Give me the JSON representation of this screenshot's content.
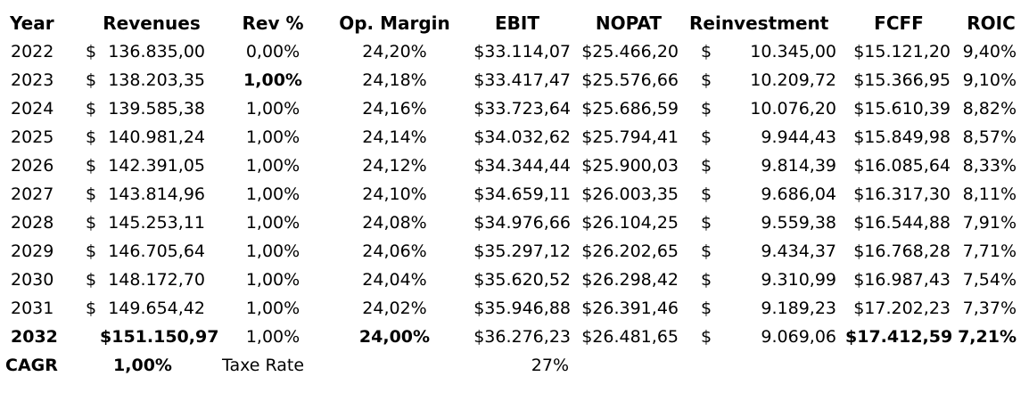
{
  "headers": [
    "Year",
    "Revenues",
    "Rev %",
    "Op. Margin",
    "EBIT",
    "NOPAT",
    "Reinvestment",
    "FCFF",
    "ROIC"
  ],
  "rows": [
    {
      "year": "2022",
      "rev_sym": "$",
      "rev": "136.835,00",
      "revpct": "0,00%",
      "opm": "24,20%",
      "ebit": "$33.114,07",
      "nopat": "$25.466,20",
      "reinv_sym": "$",
      "reinv": "10.345,00",
      "fcff": "$15.121,20",
      "roic": "9,40%"
    },
    {
      "year": "2023",
      "rev_sym": "$",
      "rev": "138.203,35",
      "revpct": "1,00%",
      "opm": "24,18%",
      "ebit": "$33.417,47",
      "nopat": "$25.576,66",
      "reinv_sym": "$",
      "reinv": "10.209,72",
      "fcff": "$15.366,95",
      "roic": "9,10%"
    },
    {
      "year": "2024",
      "rev_sym": "$",
      "rev": "139.585,38",
      "revpct": "1,00%",
      "opm": "24,16%",
      "ebit": "$33.723,64",
      "nopat": "$25.686,59",
      "reinv_sym": "$",
      "reinv": "10.076,20",
      "fcff": "$15.610,39",
      "roic": "8,82%"
    },
    {
      "year": "2025",
      "rev_sym": "$",
      "rev": "140.981,24",
      "revpct": "1,00%",
      "opm": "24,14%",
      "ebit": "$34.032,62",
      "nopat": "$25.794,41",
      "reinv_sym": "$",
      "reinv": "9.944,43",
      "fcff": "$15.849,98",
      "roic": "8,57%"
    },
    {
      "year": "2026",
      "rev_sym": "$",
      "rev": "142.391,05",
      "revpct": "1,00%",
      "opm": "24,12%",
      "ebit": "$34.344,44",
      "nopat": "$25.900,03",
      "reinv_sym": "$",
      "reinv": "9.814,39",
      "fcff": "$16.085,64",
      "roic": "8,33%"
    },
    {
      "year": "2027",
      "rev_sym": "$",
      "rev": "143.814,96",
      "revpct": "1,00%",
      "opm": "24,10%",
      "ebit": "$34.659,11",
      "nopat": "$26.003,35",
      "reinv_sym": "$",
      "reinv": "9.686,04",
      "fcff": "$16.317,30",
      "roic": "8,11%"
    },
    {
      "year": "2028",
      "rev_sym": "$",
      "rev": "145.253,11",
      "revpct": "1,00%",
      "opm": "24,08%",
      "ebit": "$34.976,66",
      "nopat": "$26.104,25",
      "reinv_sym": "$",
      "reinv": "9.559,38",
      "fcff": "$16.544,88",
      "roic": "7,91%"
    },
    {
      "year": "2029",
      "rev_sym": "$",
      "rev": "146.705,64",
      "revpct": "1,00%",
      "opm": "24,06%",
      "ebit": "$35.297,12",
      "nopat": "$26.202,65",
      "reinv_sym": "$",
      "reinv": "9.434,37",
      "fcff": "$16.768,28",
      "roic": "7,71%"
    },
    {
      "year": "2030",
      "rev_sym": "$",
      "rev": "148.172,70",
      "revpct": "1,00%",
      "opm": "24,04%",
      "ebit": "$35.620,52",
      "nopat": "$26.298,42",
      "reinv_sym": "$",
      "reinv": "9.310,99",
      "fcff": "$16.987,43",
      "roic": "7,54%"
    },
    {
      "year": "2031",
      "rev_sym": "$",
      "rev": "149.654,42",
      "revpct": "1,00%",
      "opm": "24,02%",
      "ebit": "$35.946,88",
      "nopat": "$26.391,46",
      "reinv_sym": "$",
      "reinv": "9.189,23",
      "fcff": "$17.202,23",
      "roic": "7,37%"
    },
    {
      "year": "2032",
      "rev_sym": "",
      "rev": "$151.150,97",
      "revpct": "1,00%",
      "opm": "24,00%",
      "ebit": "$36.276,23",
      "nopat": "$26.481,65",
      "reinv_sym": "$",
      "reinv": "9.069,06",
      "fcff": "$17.412,59",
      "roic": "7,21%"
    }
  ],
  "summary": {
    "cagr_label": "CAGR",
    "cagr_value": "1,00%",
    "tax_label": "Taxe Rate",
    "tax_value": "27%"
  }
}
